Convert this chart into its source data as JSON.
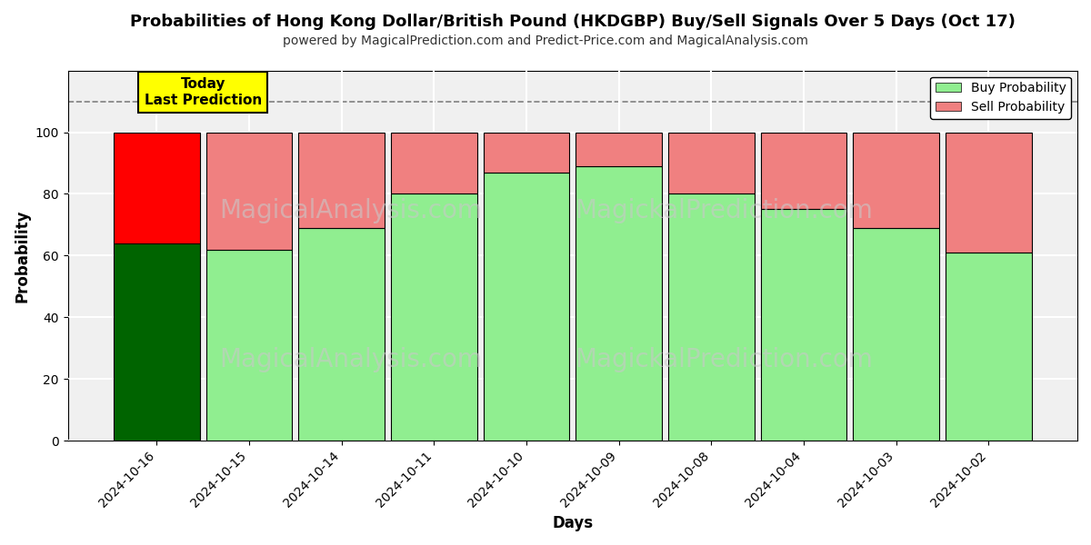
{
  "title": "Probabilities of Hong Kong Dollar/British Pound (HKDGBP) Buy/Sell Signals Over 5 Days (Oct 17)",
  "subtitle": "powered by MagicalPrediction.com and Predict-Price.com and MagicalAnalysis.com",
  "xlabel": "Days",
  "ylabel": "Probability",
  "categories": [
    "2024-10-16",
    "2024-10-15",
    "2024-10-14",
    "2024-10-11",
    "2024-10-10",
    "2024-10-09",
    "2024-10-08",
    "2024-10-04",
    "2024-10-03",
    "2024-10-02"
  ],
  "buy_values": [
    64,
    62,
    69,
    80,
    87,
    89,
    80,
    75,
    69,
    61
  ],
  "sell_values": [
    36,
    38,
    31,
    20,
    13,
    11,
    20,
    25,
    31,
    39
  ],
  "today_buy_color": "#006400",
  "today_sell_color": "#FF0000",
  "buy_color": "#90EE90",
  "sell_color": "#F08080",
  "ylim": [
    0,
    120
  ],
  "yticks": [
    0,
    20,
    40,
    60,
    80,
    100
  ],
  "dashed_line_y": 110,
  "annotation_text": "Today\nLast Prediction",
  "annotation_bg": "#FFFF00",
  "legend_buy_label": "Buy Probability",
  "legend_sell_label": "Sell Probability",
  "fig_width": 12.0,
  "fig_height": 6.0,
  "bg_color": "#ffffff"
}
